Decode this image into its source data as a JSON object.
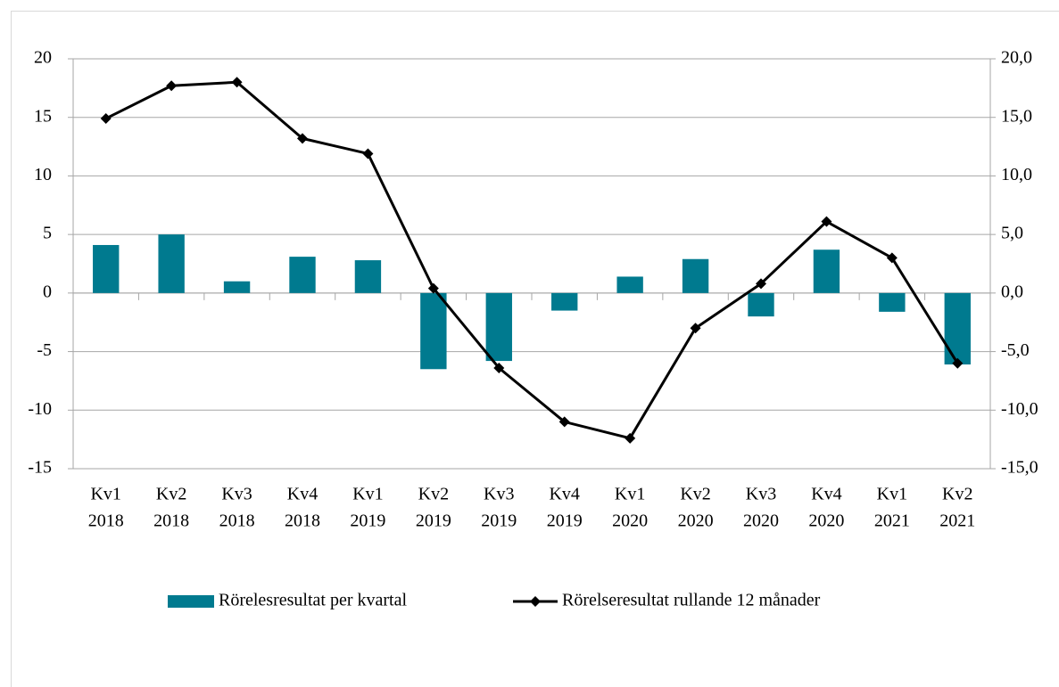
{
  "chart_data": {
    "type": "bar-line",
    "categories": [
      [
        "Kv1",
        "2018"
      ],
      [
        "Kv2",
        "2018"
      ],
      [
        "Kv3",
        "2018"
      ],
      [
        "Kv4",
        "2018"
      ],
      [
        "Kv1",
        "2019"
      ],
      [
        "Kv2",
        "2019"
      ],
      [
        "Kv3",
        "2019"
      ],
      [
        "Kv4",
        "2019"
      ],
      [
        "Kv1",
        "2020"
      ],
      [
        "Kv2",
        "2020"
      ],
      [
        "Kv3",
        "2020"
      ],
      [
        "Kv4",
        "2020"
      ],
      [
        "Kv1",
        "2021"
      ],
      [
        "Kv2",
        "2021"
      ]
    ],
    "series": [
      {
        "name": "Rörelesresultat per kvartal",
        "type": "bar",
        "color": "#007a8f",
        "values": [
          4.1,
          5.0,
          1.0,
          3.1,
          2.8,
          -6.5,
          -5.8,
          -1.5,
          1.4,
          2.9,
          -2.0,
          3.7,
          -1.6,
          -6.1
        ]
      },
      {
        "name": "Rörelseresultat rullande 12 månader",
        "type": "line",
        "axis": "y2",
        "color": "#000000",
        "values": [
          14.9,
          17.7,
          18.0,
          13.2,
          11.9,
          0.4,
          -6.4,
          -11.0,
          -12.4,
          -3.0,
          0.8,
          6.1,
          3.0,
          -6.0
        ]
      }
    ],
    "ylim": [
      -15,
      20
    ],
    "yticks": [
      -15,
      -10,
      -5,
      0,
      5,
      10,
      15,
      20
    ],
    "y2lim": [
      -15,
      20
    ],
    "y2ticks": [
      {
        "value": -15,
        "label": "-15,0"
      },
      {
        "value": -10,
        "label": "-10,0"
      },
      {
        "value": -5,
        "label": "-5,0"
      },
      {
        "value": 0,
        "label": "0,0"
      },
      {
        "value": 5,
        "label": "5,0"
      },
      {
        "value": 10,
        "label": "10,0"
      },
      {
        "value": 15,
        "label": "15,0"
      },
      {
        "value": 20,
        "label": "20,0"
      }
    ],
    "grid": true,
    "legend": "bottom"
  }
}
